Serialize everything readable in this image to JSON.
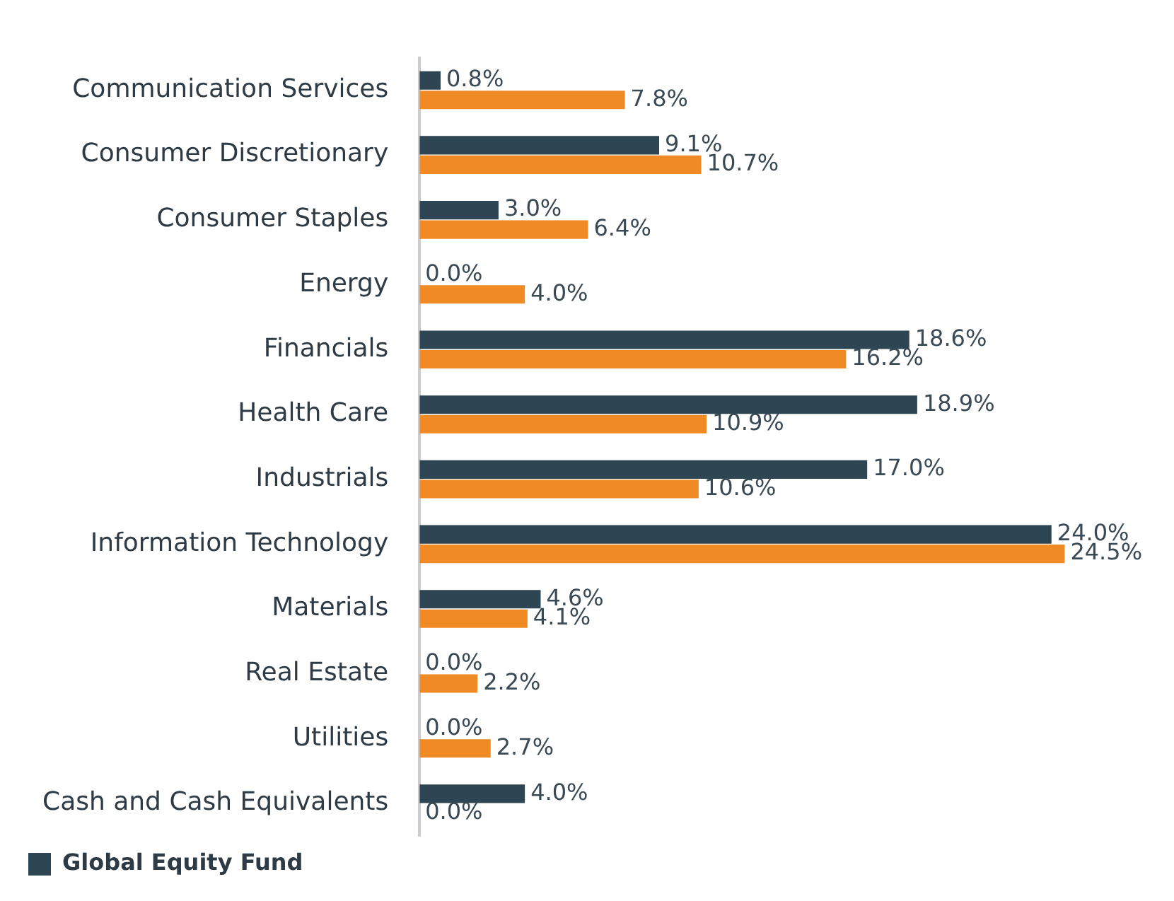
{
  "chart_data": {
    "type": "bar",
    "orientation": "horizontal",
    "legend": "bottom left",
    "categories": [
      "Communication Services",
      "Consumer Discretionary",
      "Consumer Staples",
      "Energy",
      "Financials",
      "Health Care",
      "Industrials",
      "Information Technology",
      "Materials",
      "Real Estate",
      "Utilities",
      "Cash and Cash Equivalents"
    ],
    "series": [
      {
        "name": "Global Equity Fund",
        "color": "#2e4553",
        "values": [
          0.8,
          9.1,
          3.0,
          0.0,
          18.6,
          18.9,
          17.0,
          24.0,
          4.6,
          0.0,
          0.0,
          4.0
        ],
        "value_labels": [
          "0.8%",
          "9.1%",
          "3.0%",
          "0.0%",
          "18.6%",
          "18.9%",
          "17.0%",
          "24.0%",
          "4.6%",
          "0.0%",
          "0.0%",
          "4.0%"
        ]
      },
      {
        "color": "#f08a24",
        "values": [
          7.8,
          10.7,
          6.4,
          4.0,
          16.2,
          10.9,
          10.6,
          24.5,
          4.1,
          2.2,
          2.7,
          0.0
        ],
        "value_labels": [
          "7.8%",
          "10.7%",
          "6.4%",
          "4.0%",
          "16.2%",
          "10.9%",
          "10.6%",
          "24.5%",
          "4.1%",
          "2.2%",
          "2.7%",
          "0.0%"
        ]
      }
    ]
  }
}
